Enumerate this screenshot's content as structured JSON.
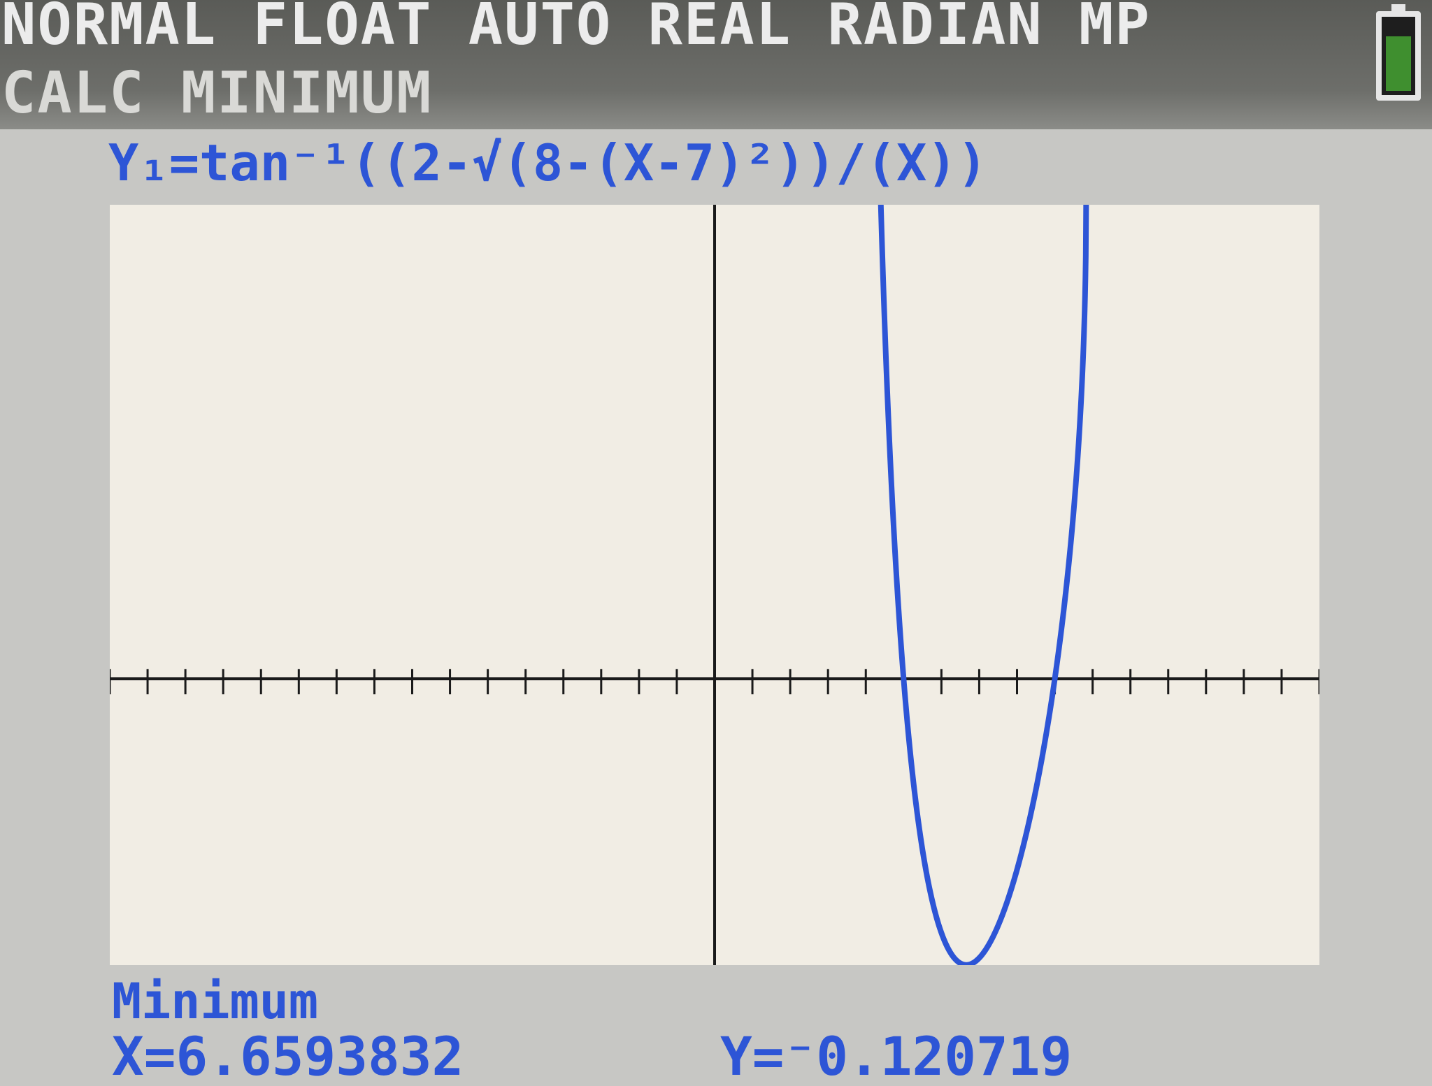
{
  "status": {
    "mode_line": "NORMAL FLOAT AUTO REAL RADIAN MP",
    "battery_icon": "battery-icon"
  },
  "calc": {
    "title": "CALC MINIMUM"
  },
  "graph": {
    "equation": "Y₁=tan⁻¹((2-√(8-(X-7)²))/(X))",
    "curve_color": "#2d55d6",
    "axis_color": "#1a1a1a",
    "background_color": "#f1ede4",
    "window": {
      "xmin": -16,
      "xmax": 16,
      "ymin": -0.1208,
      "ymax": 0.2
    }
  },
  "result": {
    "label": "Minimum",
    "x": "X=6.6593832",
    "y": "Y=⁻0.120719"
  }
}
